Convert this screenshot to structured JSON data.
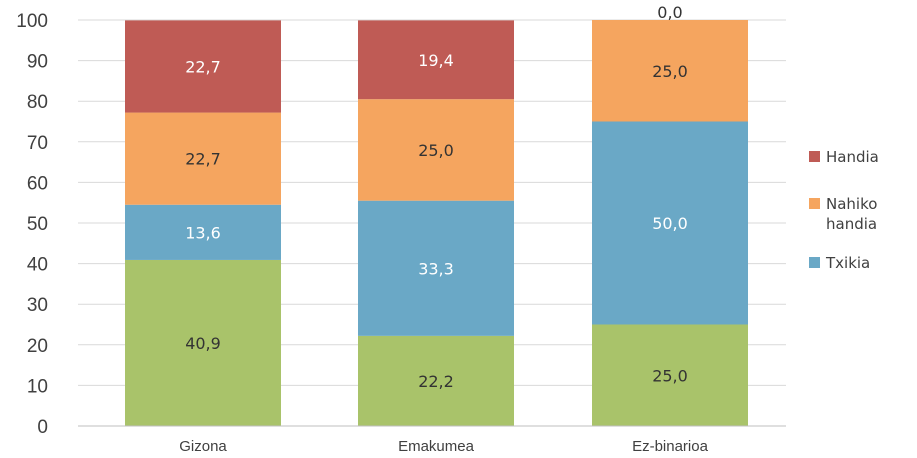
{
  "chart_data": {
    "type": "bar",
    "stacked": true,
    "categories": [
      "Gizona",
      "Emakumea",
      "Ez-binarioa"
    ],
    "ylim": [
      0,
      100
    ],
    "yticks": [
      0,
      10,
      20,
      30,
      40,
      50,
      60,
      70,
      80,
      90,
      100
    ],
    "grid": true,
    "legend_position": "right",
    "series": [
      {
        "key": "green",
        "name": "",
        "color": "#a9c36a",
        "label_color": "#333333",
        "values": [
          40.9,
          22.2,
          25.0
        ],
        "labels": [
          "40,9",
          "22,2",
          "25,0"
        ]
      },
      {
        "key": "blue",
        "name": "Txikia",
        "color": "#6aa8c6",
        "label_color": "#ffffff",
        "values": [
          13.6,
          33.3,
          50.0
        ],
        "labels": [
          "13,6",
          "33,3",
          "50,0"
        ]
      },
      {
        "key": "orange",
        "name": "Nahiko handia",
        "color": "#f5a55f",
        "label_color": "#333333",
        "values": [
          22.7,
          25.0,
          25.0
        ],
        "labels": [
          "22,7",
          "25,0",
          "25,0"
        ]
      },
      {
        "key": "red",
        "name": "Handia",
        "color": "#bf5b55",
        "label_color": "#ffffff",
        "values": [
          22.7,
          19.4,
          0.0
        ],
        "labels": [
          "22,7",
          "19,4",
          "0,0"
        ]
      }
    ],
    "legend": [
      {
        "series": "red",
        "lines": [
          "Handia"
        ]
      },
      {
        "series": "orange",
        "lines": [
          "Nahiko",
          "handia"
        ]
      },
      {
        "series": "blue",
        "lines": [
          "Txikia"
        ]
      }
    ]
  }
}
